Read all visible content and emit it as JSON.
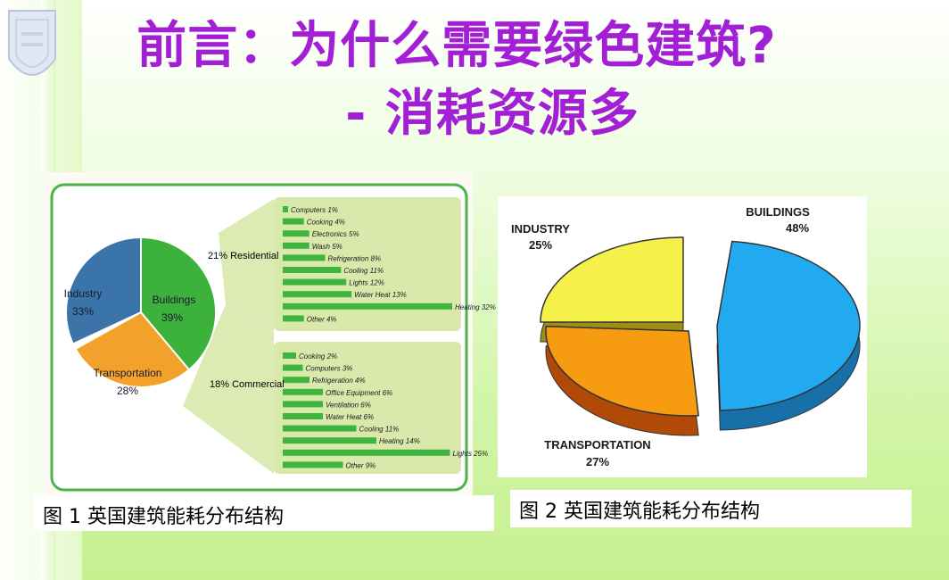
{
  "title": {
    "line1": "前言：为什么需要绿色建筑?",
    "line2": "- 消耗资源多"
  },
  "colors": {
    "title": "#a21fd6",
    "industry_blue": "#3b74a9",
    "buildings_green": "#3cb13c",
    "transport_orange": "#f2a22b",
    "bar_green": "#3fb53f",
    "pie2_blue": "#22aaf0",
    "pie2_yellow": "#f5f14a",
    "pie2_orange": "#f79b10"
  },
  "figure1": {
    "caption": "图 1   英国建筑能耗分布结构",
    "pie_labels": [
      {
        "name": "Industry",
        "pct": "33%"
      },
      {
        "name": "Buildings",
        "pct": "39%"
      },
      {
        "name": "Transportation",
        "pct": "28%"
      }
    ],
    "group_labels": {
      "residential": "21% Residential",
      "commercial": "18% Commercial"
    }
  },
  "figure2": {
    "caption": "图 2   英国建筑能耗分布结构",
    "labels": [
      {
        "name": "BUILDINGS",
        "pct": "48%"
      },
      {
        "name": "INDUSTRY",
        "pct": "25%"
      },
      {
        "name": "TRANSPORTATION",
        "pct": "27%"
      }
    ]
  },
  "chart_data": [
    {
      "type": "pie",
      "categories": [
        "Industry",
        "Buildings",
        "Transportation"
      ],
      "values": [
        33,
        39,
        28
      ]
    },
    {
      "type": "bar",
      "title": "21% Residential",
      "categories": [
        "Computers",
        "Cooking",
        "Electronics",
        "Wash",
        "Refrigeration",
        "Cooling",
        "Lights",
        "Water Heat",
        "Heating",
        "Other"
      ],
      "values": [
        1,
        4,
        5,
        5,
        8,
        11,
        12,
        13,
        32,
        4
      ],
      "labels": [
        "Computers 1%",
        "Cooking 4%",
        "Electronics 5%",
        "Wash 5%",
        "Refrigeration 8%",
        "Cooling 11%",
        "Lights 12%",
        "Water Heat 13%",
        "Heating 32%",
        "Other 4%"
      ]
    },
    {
      "type": "bar",
      "title": "18% Commercial",
      "categories": [
        "Cooking",
        "Computers",
        "Refrigeration",
        "Office Equipment",
        "Ventilation",
        "Water Heat",
        "Cooling",
        "Heating",
        "Lights",
        "Other"
      ],
      "values": [
        2,
        3,
        4,
        6,
        6,
        6,
        11,
        14,
        25,
        9
      ],
      "labels": [
        "Cooking 2%",
        "Computers 3%",
        "Refrigeration 4%",
        "Office Equipment 6%",
        "Ventilation 6%",
        "Water Heat 6%",
        "Cooling 11%",
        "Heating 14%",
        "Lights 25%",
        "Other 9%"
      ]
    },
    {
      "type": "pie",
      "categories": [
        "BUILDINGS",
        "INDUSTRY",
        "TRANSPORTATION"
      ],
      "values": [
        48,
        25,
        27
      ]
    }
  ]
}
